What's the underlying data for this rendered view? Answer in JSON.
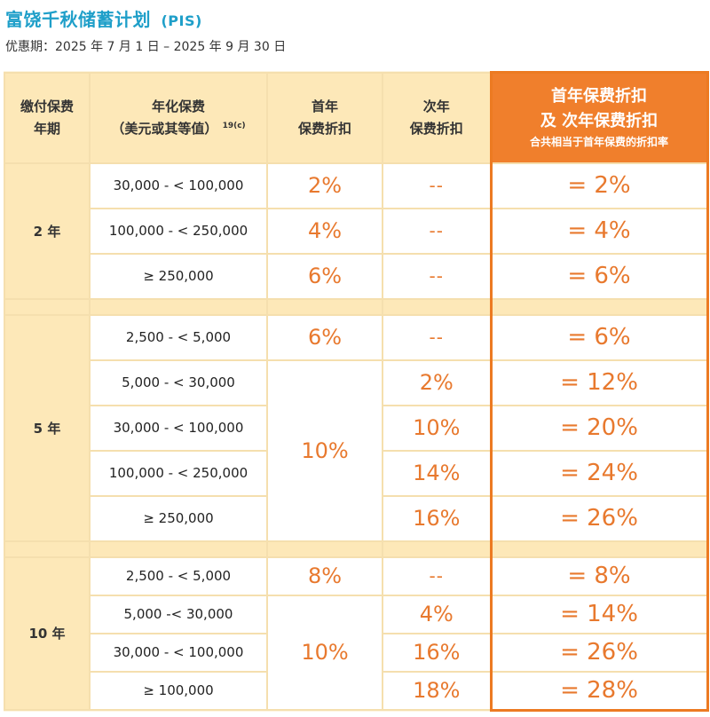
{
  "title": "富饶千秋储蓄计划",
  "title_code": "(PIS)",
  "promo_period": "优惠期：2025 年 7 月 1 日 – 2025 年 9 月 30 日",
  "headers": {
    "term_line1": "缴付保费",
    "term_line2": "年期",
    "premium_line1": "年化保费",
    "premium_line2": "（美元或其等值）",
    "premium_note": "19(c)",
    "first_line1": "首年",
    "first_line2": "保费折扣",
    "second_line1": "次年",
    "second_line2": "保费折扣",
    "total_line1": "首年保费折扣",
    "total_line2": "及 次年保费折扣",
    "total_line3": "合共相当于首年保费的折扣率"
  },
  "groups": {
    "g2": {
      "term": "2 年",
      "rows": [
        {
          "band": "30,000 - < 100,000",
          "first": "2%",
          "second": "--",
          "total": "= 2%"
        },
        {
          "band": "100,000 - < 250,000",
          "first": "4%",
          "second": "--",
          "total": "= 4%"
        },
        {
          "band": "≥ 250,000",
          "first": "6%",
          "second": "--",
          "total": "= 6%"
        }
      ]
    },
    "g5": {
      "term": "5 年",
      "shared_first": "10%",
      "rows": [
        {
          "band": "2,500 - < 5,000",
          "first": "6%",
          "second": "--",
          "total": "= 6%"
        },
        {
          "band": "5,000 - < 30,000",
          "second": "2%",
          "total": "= 12%"
        },
        {
          "band": "30,000 - < 100,000",
          "second": "10%",
          "total": "= 20%"
        },
        {
          "band": "100,000 - < 250,000",
          "second": "14%",
          "total": "= 24%"
        },
        {
          "band": "≥ 250,000",
          "second": "16%",
          "total": "= 26%"
        }
      ]
    },
    "g10": {
      "term": "10 年",
      "shared_first": "10%",
      "rows": [
        {
          "band": "2,500 - < 5,000",
          "first": "8%",
          "second": "--",
          "total": "= 8%"
        },
        {
          "band": "5,000 -< 30,000",
          "second": "4%",
          "total": "= 14%"
        },
        {
          "band": "30,000 - < 100,000",
          "second": "16%",
          "total": "= 26%"
        },
        {
          "band": "≥ 100,000",
          "second": "18%",
          "total": "= 28%"
        }
      ]
    }
  }
}
